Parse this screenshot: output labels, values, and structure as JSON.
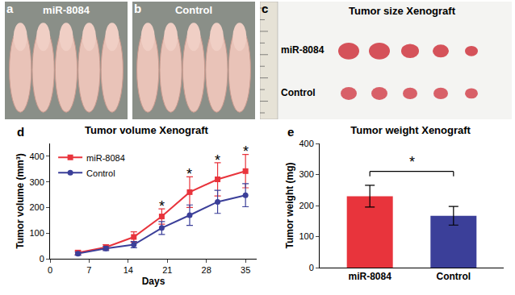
{
  "panels": [
    {
      "letter": "a",
      "title": "miR-8084"
    },
    {
      "letter": "b",
      "title": "Control"
    },
    {
      "letter": "c",
      "title": "Tumor size Xenograft",
      "rows": [
        "miR-8084",
        "Control"
      ]
    }
  ],
  "chart_data": [
    {
      "panel": "d",
      "type": "line",
      "title": "Tumor volume Xenograft",
      "x_label": "Days",
      "y_label": "Tumor volume (mm³)",
      "x": [
        5,
        10,
        15,
        20,
        25,
        30,
        35
      ],
      "series": [
        {
          "name": "miR-8084",
          "color": "#e8343c",
          "marker": "square",
          "values": [
            24,
            45,
            85,
            165,
            260,
            310,
            342
          ],
          "errors": [
            8,
            10,
            20,
            30,
            60,
            65,
            65
          ]
        },
        {
          "name": "Control",
          "color": "#3b3f99",
          "marker": "circle",
          "values": [
            20,
            40,
            55,
            120,
            170,
            222,
            248
          ],
          "errors": [
            6,
            8,
            12,
            25,
            40,
            45,
            45
          ]
        }
      ],
      "xlim": [
        0,
        37
      ],
      "xticks": [
        0,
        7,
        14,
        21,
        28,
        35
      ],
      "ylim": [
        0,
        450
      ],
      "yticks": [
        0,
        100,
        200,
        300,
        400
      ],
      "grid": false,
      "legend": "top left",
      "annotations": [
        {
          "x": 20,
          "y": 205,
          "text": "*"
        },
        {
          "x": 25,
          "y": 330,
          "text": "*"
        },
        {
          "x": 30,
          "y": 385,
          "text": "*"
        },
        {
          "x": 35,
          "y": 420,
          "text": "*"
        }
      ]
    },
    {
      "panel": "e",
      "type": "bar",
      "title": "Tumor weight Xenograft",
      "y_label": "Tumor weight (mg)",
      "categories": [
        "miR-8084",
        "Control"
      ],
      "values": [
        230,
        167
      ],
      "errors": [
        35,
        30
      ],
      "colors": [
        "#e8343c",
        "#3b3f99"
      ],
      "ylim": [
        0,
        400
      ],
      "yticks": [
        0,
        100,
        200,
        300,
        400
      ],
      "grid": false,
      "bracket": {
        "from": "miR-8084",
        "to": "Control",
        "y": 310,
        "text": "*"
      }
    }
  ]
}
